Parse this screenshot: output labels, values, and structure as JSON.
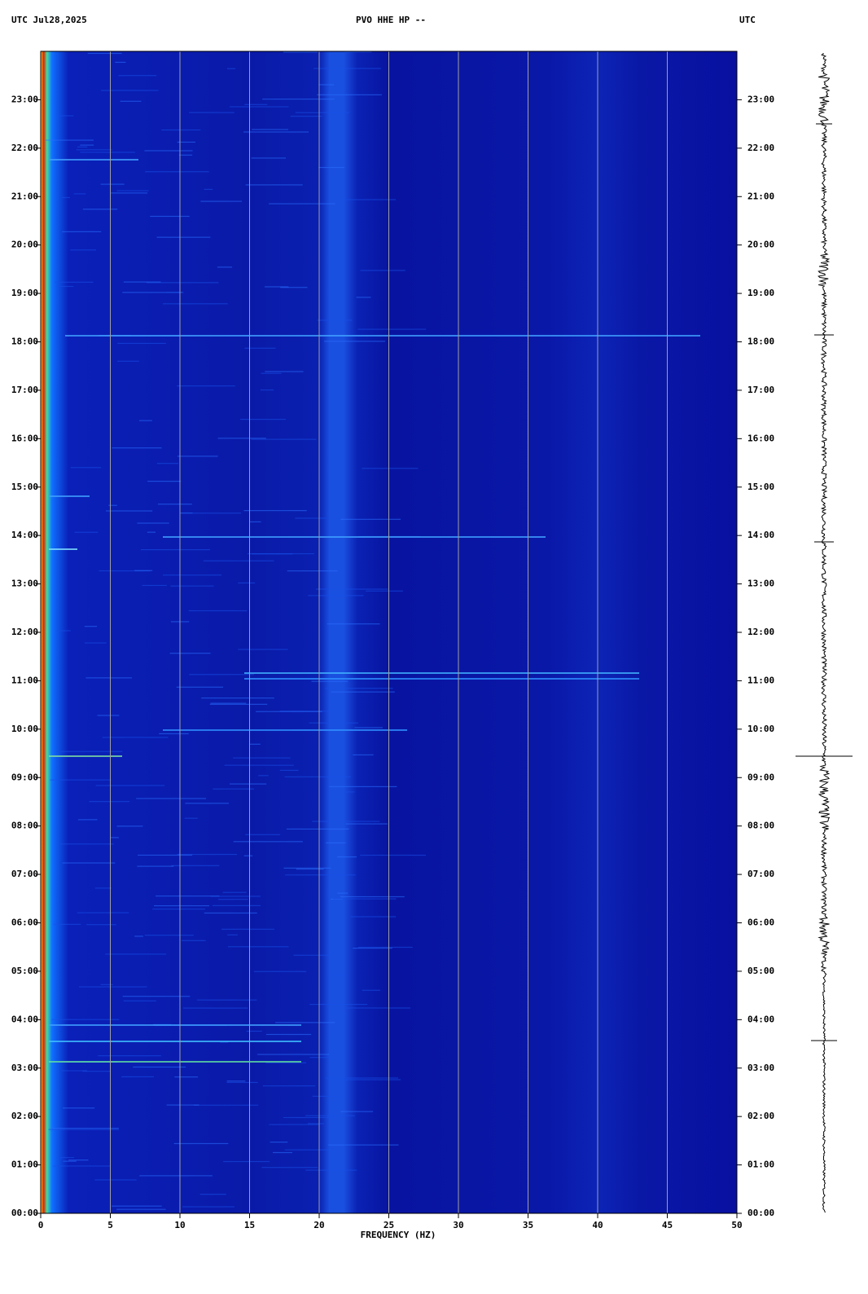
{
  "chart_data": {
    "type": "spectrogram",
    "title": "PVO HHE HP --",
    "header_left": "UTC  Jul28,2025",
    "header_right": "UTC",
    "xlabel": "FREQUENCY (HZ)",
    "xlim": [
      0,
      50
    ],
    "xticks": [
      0,
      5,
      10,
      15,
      20,
      25,
      30,
      35,
      40,
      45,
      50
    ],
    "ylim": [
      0,
      24
    ],
    "yticks": [
      {
        "value": 0,
        "label": "00:00"
      },
      {
        "value": 1,
        "label": "01:00"
      },
      {
        "value": 2,
        "label": "02:00"
      },
      {
        "value": 3,
        "label": "03:00"
      },
      {
        "value": 4,
        "label": "04:00"
      },
      {
        "value": 5,
        "label": "05:00"
      },
      {
        "value": 6,
        "label": "06:00"
      },
      {
        "value": 7,
        "label": "07:00"
      },
      {
        "value": 8,
        "label": "08:00"
      },
      {
        "value": 9,
        "label": "09:00"
      },
      {
        "value": 10,
        "label": "10:00"
      },
      {
        "value": 11,
        "label": "11:00"
      },
      {
        "value": 12,
        "label": "12:00"
      },
      {
        "value": 13,
        "label": "13:00"
      },
      {
        "value": 14,
        "label": "14:00"
      },
      {
        "value": 15,
        "label": "15:00"
      },
      {
        "value": 16,
        "label": "16:00"
      },
      {
        "value": 17,
        "label": "17:00"
      },
      {
        "value": 18,
        "label": "18:00"
      },
      {
        "value": 19,
        "label": "19:00"
      },
      {
        "value": 20,
        "label": "20:00"
      },
      {
        "value": 21,
        "label": "21:00"
      },
      {
        "value": 22,
        "label": "22:00"
      },
      {
        "value": 23,
        "label": "23:00"
      }
    ],
    "grid": true,
    "grid_color": "#a0a0a0"
  }
}
